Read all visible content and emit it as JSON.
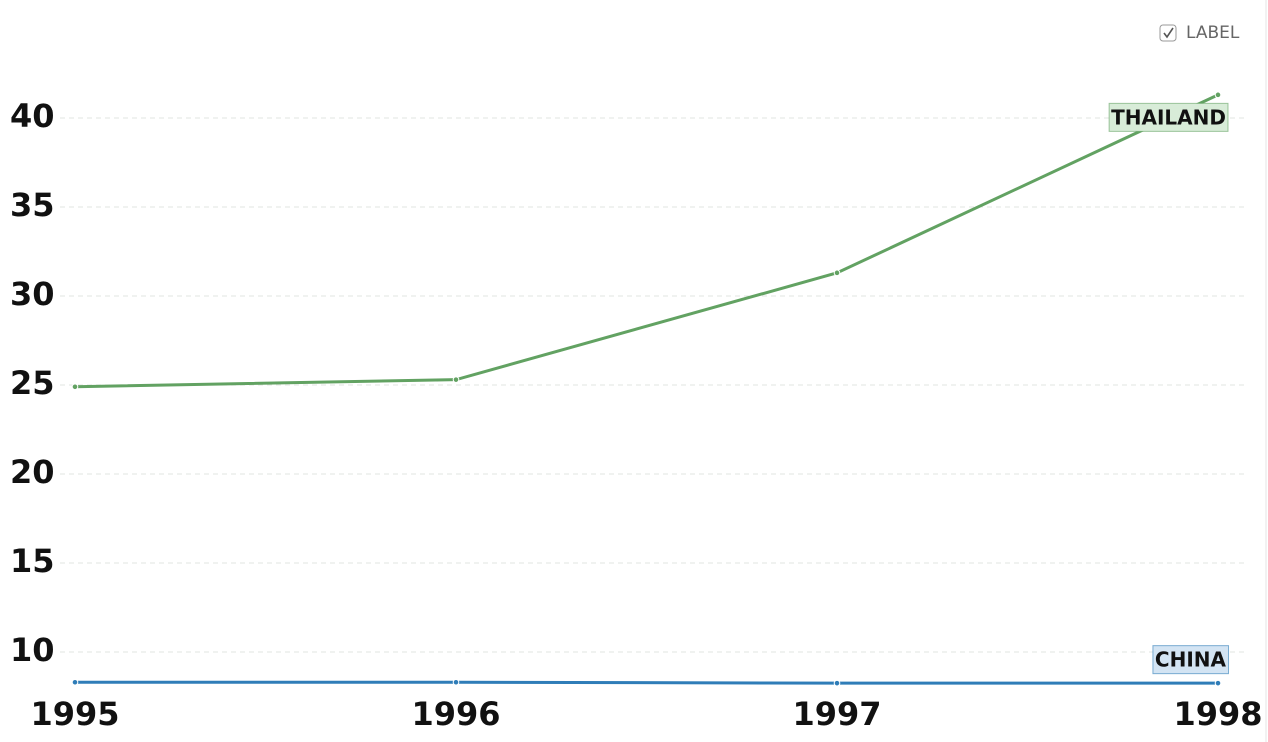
{
  "chart_data": {
    "type": "line",
    "label_toggle": "LABEL",
    "categories": [
      "1995",
      "1996",
      "1997",
      "1998"
    ],
    "series": [
      {
        "name": "THAILAND",
        "color": "#62a262",
        "label_fill": "#d8ecd8",
        "values": [
          24.9,
          25.3,
          31.3,
          41.3
        ]
      },
      {
        "name": "CHINA",
        "color": "#2f7db8",
        "label_fill": "#d3e4f3",
        "values": [
          8.3,
          8.3,
          8.25,
          8.25
        ]
      }
    ],
    "ylim": [
      8,
      44
    ],
    "yticks": [
      10,
      15,
      20,
      25,
      30,
      35,
      40
    ],
    "grid": true
  }
}
